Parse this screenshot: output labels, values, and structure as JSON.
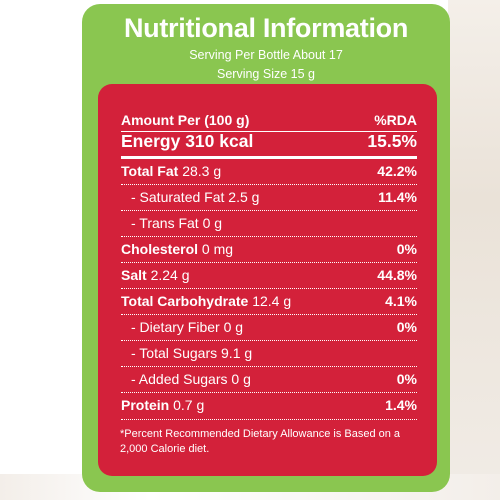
{
  "title": "Nutritional Information",
  "serving_per_bottle": "Serving Per Bottle About 17",
  "serving_size": "Serving Size 15 g",
  "header": {
    "label": "Amount Per (100 g)",
    "rda": "%RDA"
  },
  "energy": {
    "label": "Energy 310 kcal",
    "rda": "15.5%"
  },
  "rows": [
    {
      "name": "Total Fat",
      "amount": "28.3 g",
      "rda": "42.2%"
    },
    {
      "name": "- Saturated Fat",
      "amount": "2.5 g",
      "rda": "11.4%"
    },
    {
      "name": "- Trans Fat",
      "amount": "0 g",
      "rda": ""
    },
    {
      "name": "Cholesterol",
      "amount": "0 mg",
      "rda": "0%"
    },
    {
      "name": "Salt",
      "amount": "2.24 g",
      "rda": "44.8%"
    },
    {
      "name": "Total Carbohydrate",
      "amount": "12.4 g",
      "rda": "4.1%"
    },
    {
      "name": "- Dietary Fiber",
      "amount": "0 g",
      "rda": "0%"
    },
    {
      "name": "- Total Sugars",
      "amount": "9.1 g",
      "rda": ""
    },
    {
      "name": "- Added Sugars",
      "amount": "0 g",
      "rda": "0%"
    },
    {
      "name": "Protein",
      "amount": "0.7 g",
      "rda": "1.4%"
    }
  ],
  "footnote": "*Percent Recommended Dietary Allowance is Based on a 2,000 Calorie diet.",
  "colors": {
    "green": "#8ac650",
    "red": "#d3213a",
    "text": "#ffffff"
  }
}
